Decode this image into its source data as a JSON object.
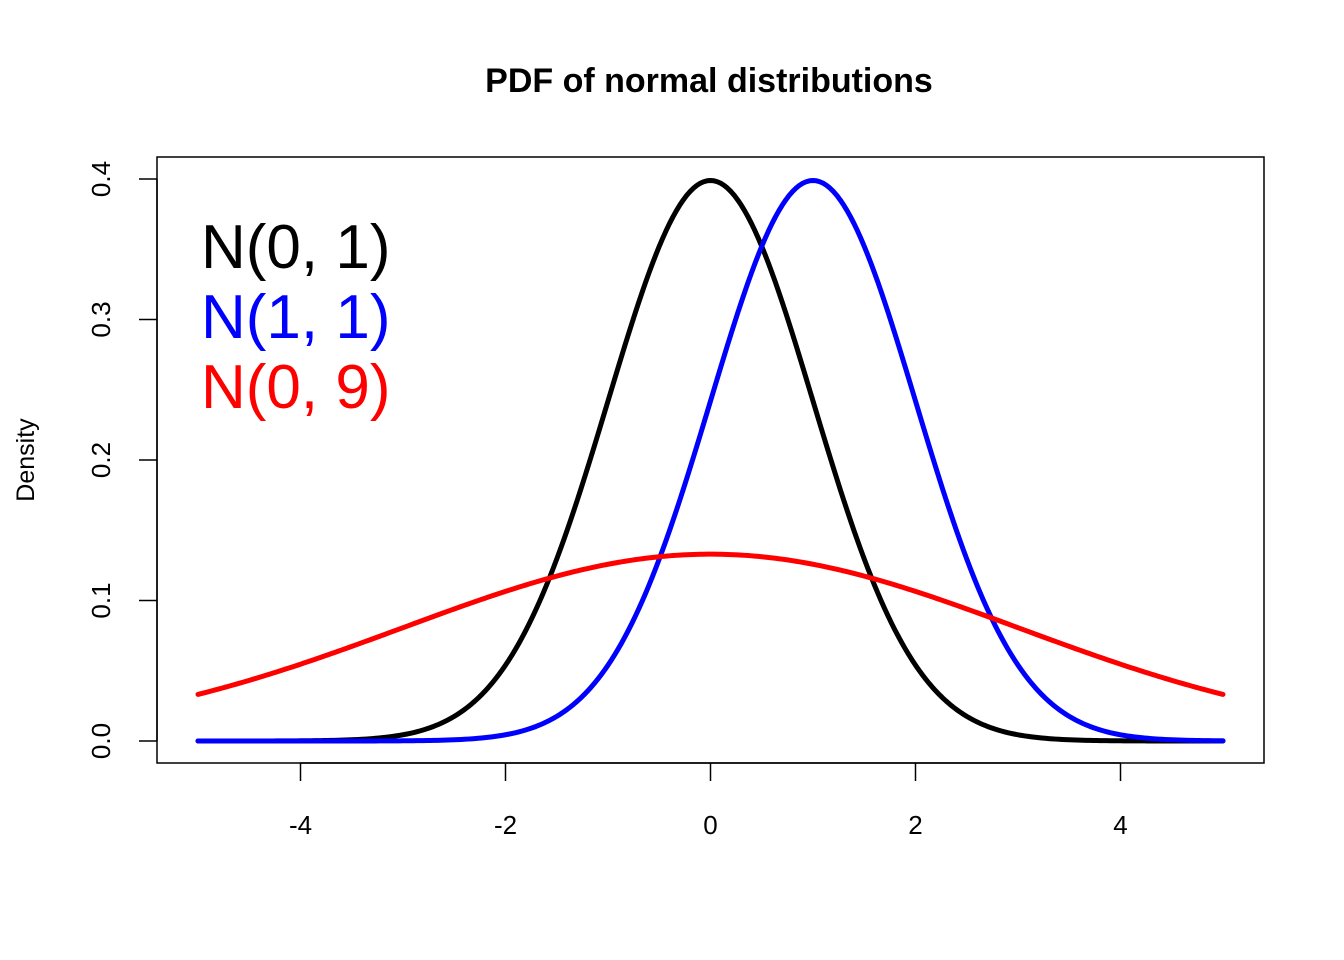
{
  "chart_data": {
    "type": "line",
    "title": "PDF of normal distributions",
    "xlabel": "",
    "ylabel": "Density",
    "xlim": [
      -5,
      5
    ],
    "ylim": [
      0,
      0.4
    ],
    "x_ticks": [
      -4,
      -2,
      0,
      2,
      4
    ],
    "y_ticks": [
      0.0,
      0.1,
      0.2,
      0.3,
      0.4
    ],
    "x_tick_labels": [
      "-4",
      "-2",
      "0",
      "2",
      "4"
    ],
    "y_tick_labels": [
      "0.0",
      "0.1",
      "0.2",
      "0.3",
      "0.4"
    ],
    "grid": false,
    "legend_position": "top-left",
    "series": [
      {
        "name": "N(0, 1)",
        "color": "#000000",
        "mean": 0,
        "variance": 1,
        "x": [
          -5,
          -4,
          -3,
          -2,
          -1,
          0,
          1,
          2,
          3,
          4,
          5
        ],
        "values": [
          0.0,
          0.0001,
          0.0044,
          0.054,
          0.242,
          0.3989,
          0.242,
          0.054,
          0.0044,
          0.0001,
          0.0
        ]
      },
      {
        "name": "N(1, 1)",
        "color": "#0000ff",
        "mean": 1,
        "variance": 1,
        "x": [
          -5,
          -4,
          -3,
          -2,
          -1,
          0,
          1,
          2,
          3,
          4,
          5
        ],
        "values": [
          0.0,
          0.0,
          0.0001,
          0.0044,
          0.054,
          0.242,
          0.3989,
          0.242,
          0.054,
          0.0044,
          0.0001
        ]
      },
      {
        "name": "N(0, 9)",
        "color": "#ff0000",
        "mean": 0,
        "variance": 9,
        "x": [
          -5,
          -4,
          -3,
          -2,
          -1,
          0,
          1,
          2,
          3,
          4,
          5
        ],
        "values": [
          0.0332,
          0.0547,
          0.0807,
          0.1065,
          0.1258,
          0.133,
          0.1258,
          0.1065,
          0.0807,
          0.0547,
          0.0332
        ]
      }
    ]
  }
}
